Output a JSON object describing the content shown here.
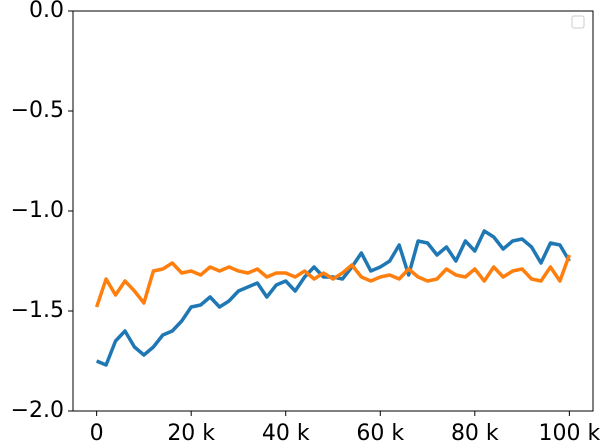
{
  "chart_data": {
    "type": "line",
    "x": [
      0,
      2000,
      4000,
      6000,
      8000,
      10000,
      12000,
      14000,
      16000,
      18000,
      20000,
      22000,
      24000,
      26000,
      28000,
      30000,
      32000,
      34000,
      36000,
      38000,
      40000,
      42000,
      44000,
      46000,
      48000,
      50000,
      52000,
      54000,
      56000,
      58000,
      60000,
      62000,
      64000,
      66000,
      68000,
      70000,
      72000,
      74000,
      76000,
      78000,
      80000,
      82000,
      84000,
      86000,
      88000,
      90000,
      92000,
      94000,
      96000,
      98000,
      100000
    ],
    "series": [
      {
        "color": "#1f77b4",
        "values": [
          -1.75,
          -1.77,
          -1.65,
          -1.6,
          -1.68,
          -1.72,
          -1.68,
          -1.62,
          -1.6,
          -1.55,
          -1.48,
          -1.47,
          -1.43,
          -1.48,
          -1.45,
          -1.4,
          -1.38,
          -1.36,
          -1.43,
          -1.37,
          -1.35,
          -1.4,
          -1.33,
          -1.28,
          -1.33,
          -1.33,
          -1.34,
          -1.28,
          -1.21,
          -1.3,
          -1.28,
          -1.25,
          -1.17,
          -1.32,
          -1.15,
          -1.16,
          -1.22,
          -1.18,
          -1.25,
          -1.15,
          -1.2,
          -1.1,
          -1.13,
          -1.19,
          -1.15,
          -1.14,
          -1.18,
          -1.26,
          -1.16,
          -1.17,
          -1.25
        ]
      },
      {
        "color": "#ff7f0e",
        "values": [
          -1.48,
          -1.34,
          -1.42,
          -1.35,
          -1.4,
          -1.46,
          -1.3,
          -1.29,
          -1.26,
          -1.31,
          -1.3,
          -1.32,
          -1.28,
          -1.3,
          -1.28,
          -1.3,
          -1.31,
          -1.29,
          -1.33,
          -1.31,
          -1.31,
          -1.33,
          -1.3,
          -1.34,
          -1.31,
          -1.34,
          -1.31,
          -1.27,
          -1.33,
          -1.35,
          -1.33,
          -1.32,
          -1.34,
          -1.29,
          -1.33,
          -1.35,
          -1.34,
          -1.29,
          -1.32,
          -1.33,
          -1.29,
          -1.35,
          -1.28,
          -1.33,
          -1.3,
          -1.29,
          -1.34,
          -1.35,
          -1.28,
          -1.35,
          -1.22
        ]
      }
    ],
    "xlim": [
      -5000,
      105000
    ],
    "xticks": [
      {
        "value": 0,
        "label": "0"
      },
      {
        "value": 20000,
        "label": "20 k"
      },
      {
        "value": 40000,
        "label": "40 k"
      },
      {
        "value": 60000,
        "label": "60 k"
      },
      {
        "value": 80000,
        "label": "80 k"
      },
      {
        "value": 100000,
        "label": "100 k"
      }
    ],
    "ylim": [
      -2,
      0
    ],
    "yticks": [
      {
        "value": -2,
        "label": "−2.0"
      },
      {
        "value": -1.5,
        "label": "−1.5"
      },
      {
        "value": -1,
        "label": "−1.0"
      },
      {
        "value": -0.5,
        "label": "−0.5"
      },
      {
        "value": 0,
        "label": "0.0"
      }
    ]
  }
}
